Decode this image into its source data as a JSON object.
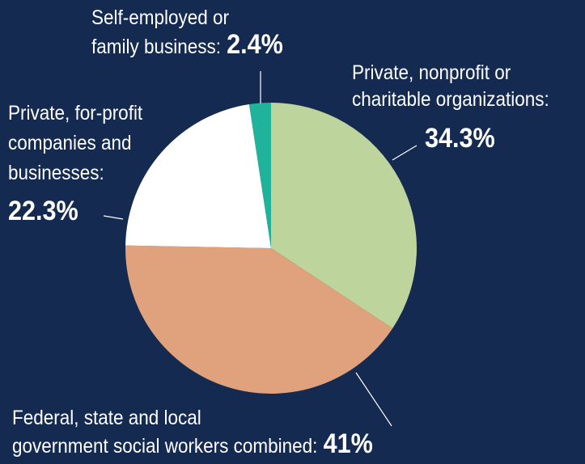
{
  "chart_data": {
    "type": "pie",
    "categories": [
      [
        "Private, nonprofit or",
        "charitable organizations:"
      ],
      [
        "Federal, state and local",
        "government social workers combined:"
      ],
      [
        "Private, for-profit",
        "companies and",
        "businesses:"
      ],
      [
        "Self-employed or",
        "family business:"
      ]
    ],
    "values": [
      34.3,
      41,
      22.3,
      2.4
    ],
    "value_labels": [
      "34.3%",
      "41%",
      "22.3%",
      "2.4%"
    ],
    "colors": [
      "#bdd59d",
      "#dfa27c",
      "#ffffff",
      "#1fb39c"
    ],
    "start_angle": 0,
    "direction": "clockwise"
  }
}
